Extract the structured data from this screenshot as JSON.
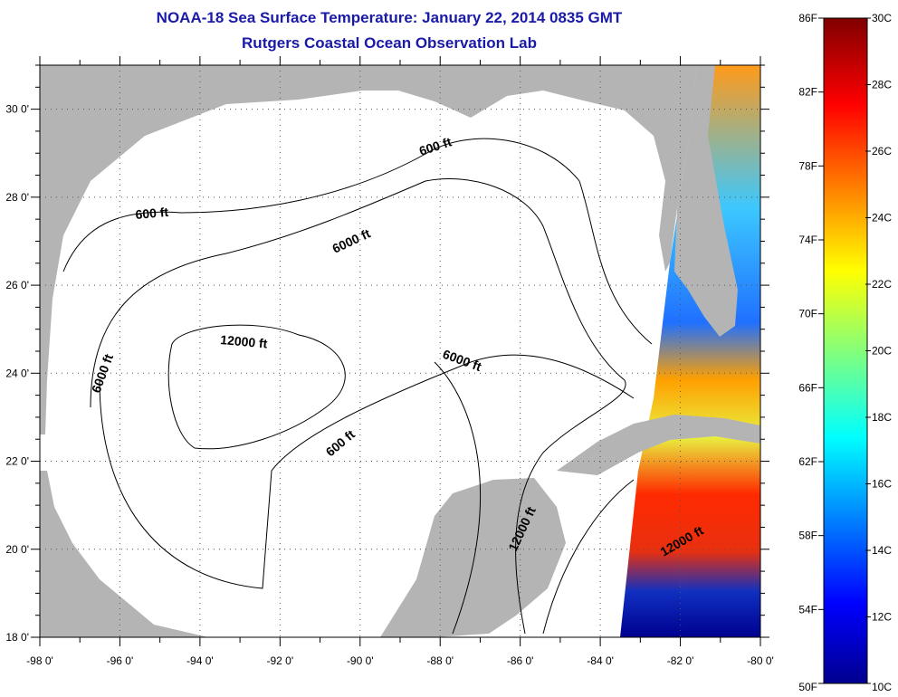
{
  "title": {
    "line1": "NOAA-18 Sea Surface Temperature:  January 22, 2014 0835 GMT",
    "line2": "Rutgers Coastal Ocean Observation Lab"
  },
  "map": {
    "lon_range": [
      -98,
      -80
    ],
    "lat_range": [
      18,
      31
    ],
    "x_ticks": [
      "-98 0'",
      "-96 0'",
      "-94 0'",
      "-92 0'",
      "-90 0'",
      "-88 0'",
      "-86 0'",
      "-84 0'",
      "-82 0'",
      "-80 0'"
    ],
    "y_ticks": [
      "18 0'",
      "20 0'",
      "22 0'",
      "24 0'",
      "26 0'",
      "28 0'",
      "30 0'"
    ],
    "contour_labels": [
      "600 ft",
      "600 ft",
      "6000 ft",
      "12000 ft",
      "6000 ft",
      "6000 ft",
      "600 ft",
      "12000 ft",
      "12000 ft"
    ],
    "colors": {
      "land": "#b4b4b4",
      "ocean": "#ffffff"
    }
  },
  "colorbar": {
    "fahrenheit": [
      "86F",
      "82F",
      "78F",
      "74F",
      "70F",
      "66F",
      "62F",
      "58F",
      "54F",
      "50F"
    ],
    "celsius": [
      "30C",
      "28C",
      "26C",
      "24C",
      "22C",
      "20C",
      "18C",
      "16C",
      "14C",
      "12C",
      "10C"
    ],
    "range_c": [
      10,
      30
    ]
  }
}
